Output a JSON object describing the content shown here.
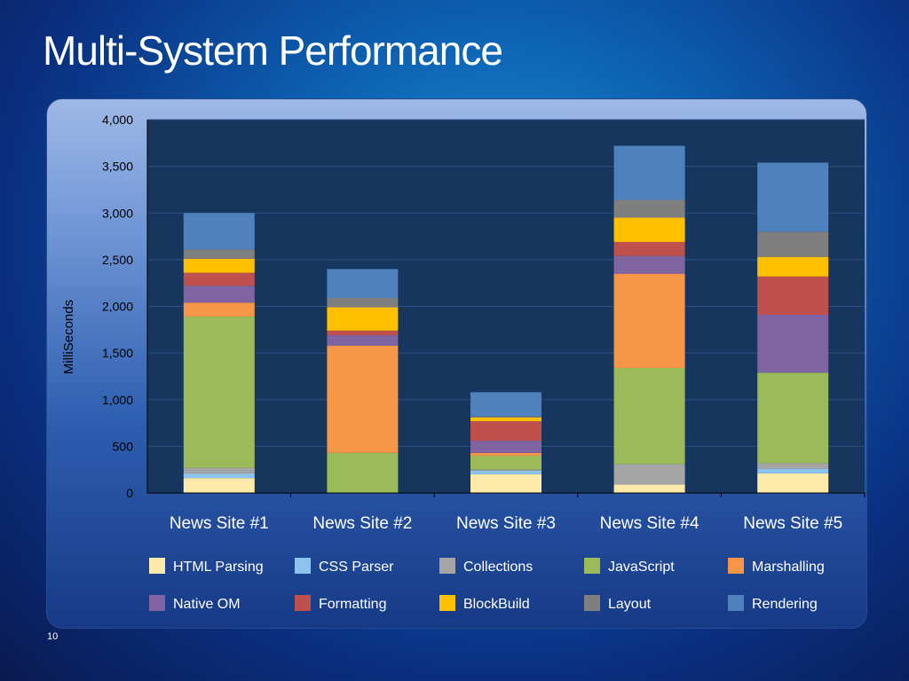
{
  "slide": {
    "title": "Multi-System Performance",
    "page_number": "10"
  },
  "chart_data": {
    "type": "bar",
    "stacked": true,
    "categories": [
      "News Site #1",
      "News Site #2",
      "News Site #3",
      "News Site #4",
      "News Site #5"
    ],
    "ylabel": "MilliSeconds",
    "xlabel": "",
    "ylim": [
      0,
      4000
    ],
    "yticks": [
      "0",
      "500",
      "1,000",
      "1,500",
      "2,000",
      "2,500",
      "3,000",
      "3,500",
      "4,000"
    ],
    "ytick_values": [
      0,
      500,
      1000,
      1500,
      2000,
      2500,
      3000,
      3500,
      4000
    ],
    "grid": true,
    "legend_position": "bottom",
    "series": [
      {
        "name": "HTML Parsing",
        "color": "#fde9a9",
        "values": [
          160,
          0,
          200,
          90,
          210
        ]
      },
      {
        "name": "CSS Parser",
        "color": "#8dc3ec",
        "values": [
          50,
          0,
          40,
          0,
          50
        ]
      },
      {
        "name": "Collections",
        "color": "#a5a5a5",
        "values": [
          60,
          0,
          10,
          220,
          60
        ]
      },
      {
        "name": "JavaScript",
        "color": "#9bbb59",
        "values": [
          1620,
          430,
          150,
          1030,
          970
        ]
      },
      {
        "name": "Marshalling",
        "color": "#f79646",
        "values": [
          150,
          1150,
          30,
          1010,
          0
        ]
      },
      {
        "name": "Native OM",
        "color": "#8064a2",
        "values": [
          180,
          110,
          130,
          190,
          620
        ]
      },
      {
        "name": "Formatting",
        "color": "#c0504d",
        "values": [
          140,
          50,
          210,
          150,
          410
        ]
      },
      {
        "name": "BlockBuild",
        "color": "#ffc000",
        "values": [
          150,
          250,
          40,
          260,
          210
        ]
      },
      {
        "name": "Layout",
        "color": "#7f7f7f",
        "values": [
          100,
          100,
          10,
          190,
          270
        ]
      },
      {
        "name": "Rendering",
        "color": "#4f81bd",
        "values": [
          390,
          310,
          260,
          580,
          740
        ]
      }
    ]
  }
}
